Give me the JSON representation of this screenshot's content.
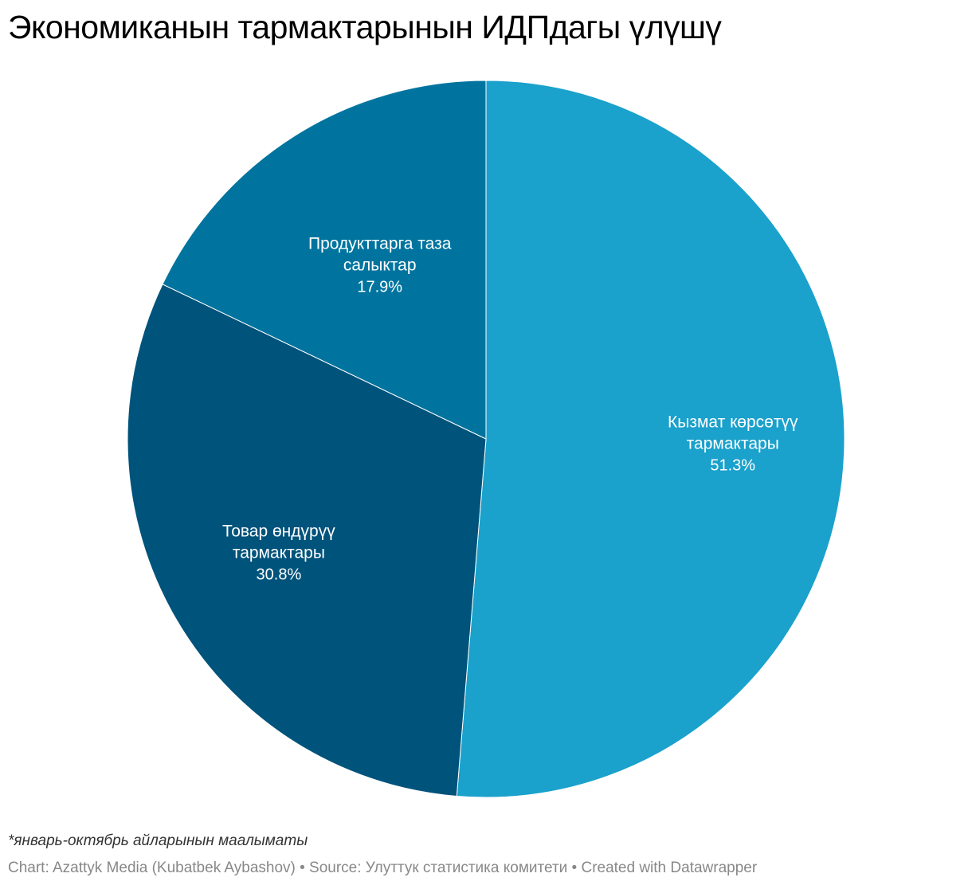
{
  "chart_data": {
    "type": "pie",
    "title": "Экономиканын тармактарынын ИДПдагы үлүшү",
    "unit": "%",
    "slices": [
      {
        "label_lines": [
          "Кызмат көрсөтүү",
          "тармактары"
        ],
        "value": 51.3,
        "value_label": "51.3%",
        "color": "#1aa1cc"
      },
      {
        "label_lines": [
          "Товар өндүрүү",
          "тармактары"
        ],
        "value": 30.8,
        "value_label": "30.8%",
        "color": "#00537b"
      },
      {
        "label_lines": [
          "Продукттарга таза",
          "салыктар"
        ],
        "value": 17.9,
        "value_label": "17.9%",
        "color": "#00749f"
      }
    ]
  },
  "footer": {
    "note": "*январь-октябрь айларынын маалыматы",
    "credits": "Chart: Azattyk Media (Kubatbek Aybashov) • Source: Улуттук статистика комитети • Created with Datawrapper"
  }
}
